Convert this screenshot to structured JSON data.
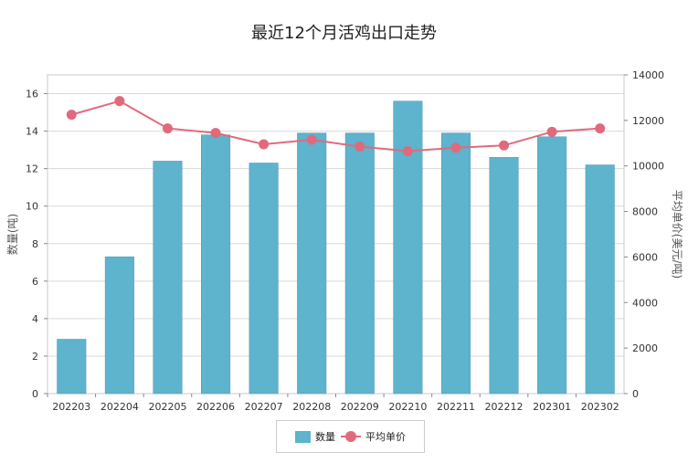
{
  "chart_data": {
    "type": "bar",
    "title": "最近12个月活鸡出口走势",
    "categories": [
      "202203",
      "202204",
      "202205",
      "202206",
      "202207",
      "202208",
      "202209",
      "202210",
      "202211",
      "202212",
      "202301",
      "202302"
    ],
    "series": [
      {
        "name": "数量",
        "type": "bar",
        "axis": "left",
        "values": [
          2.9,
          7.3,
          12.4,
          13.8,
          12.3,
          13.9,
          13.9,
          15.6,
          13.9,
          12.6,
          13.7,
          12.2
        ]
      },
      {
        "name": "平均单价",
        "type": "line",
        "axis": "right",
        "values": [
          12250,
          12850,
          11650,
          11450,
          10950,
          11150,
          10850,
          10650,
          10800,
          10900,
          11500,
          11650
        ]
      }
    ],
    "ylabel": "数量(吨)",
    "y2label": "平均单价(美元/吨)",
    "ylim": [
      0,
      17
    ],
    "yticks": [
      0,
      2,
      4,
      6,
      8,
      10,
      12,
      14,
      16
    ],
    "y2lim": [
      0,
      14000
    ],
    "y2ticks": [
      0,
      2000,
      4000,
      6000,
      8000,
      10000,
      12000,
      14000
    ],
    "grid": true,
    "legend_position": "bottom-center",
    "colors": {
      "bar": "#5eb3cd",
      "bar_edge": "#4a9bb5",
      "line": "#e06a7c"
    }
  }
}
